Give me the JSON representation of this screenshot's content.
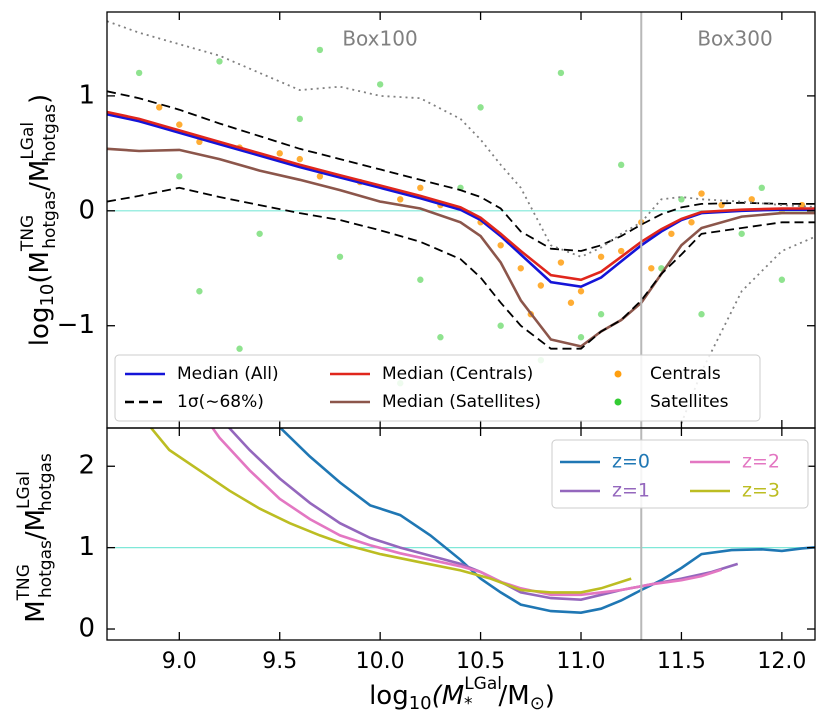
{
  "chart_data": [
    {
      "type": "line",
      "ylabel_parts": [
        "log",
        "10",
        "(M",
        "TNG",
        "hotgas",
        "/M",
        "LGal",
        "hotgas",
        ")"
      ],
      "xlim": [
        8.64,
        12.165
      ],
      "ylim": [
        -1.89,
        1.73
      ],
      "yticks": [
        {
          "value": -1,
          "label": "−1"
        },
        0,
        1
      ],
      "hline": 0,
      "vline": 11.3,
      "annotations": [
        "Box100",
        "Box300"
      ],
      "legend": "lower left",
      "x": [
        8.64,
        8.8,
        9.0,
        9.2,
        9.4,
        9.6,
        9.8,
        10.0,
        10.2,
        10.4,
        10.5,
        10.6,
        10.7,
        10.85,
        11.0,
        11.1,
        11.2,
        11.3,
        11.4,
        11.5,
        11.6,
        11.8,
        12.0,
        12.2
      ],
      "series": [
        {
          "name": "Median (All)",
          "color": "#1414d8",
          "dash": "solid",
          "values": [
            0.84,
            0.78,
            0.68,
            0.58,
            0.48,
            0.38,
            0.29,
            0.2,
            0.11,
            0.01,
            -0.08,
            -0.22,
            -0.38,
            -0.62,
            -0.66,
            -0.58,
            -0.44,
            -0.3,
            -0.18,
            -0.08,
            -0.02,
            0.0,
            0.01,
            0.01
          ]
        },
        {
          "name": "Median (Centrals)",
          "color": "#e0261c",
          "dash": "solid",
          "values": [
            0.86,
            0.8,
            0.7,
            0.6,
            0.5,
            0.4,
            0.31,
            0.22,
            0.13,
            0.03,
            -0.06,
            -0.2,
            -0.35,
            -0.56,
            -0.6,
            -0.53,
            -0.4,
            -0.27,
            -0.16,
            -0.07,
            -0.01,
            0.01,
            0.02,
            0.02
          ]
        },
        {
          "name": "Median (Satellites)",
          "color": "#8c564b",
          "dash": "solid",
          "values": [
            0.54,
            0.52,
            0.53,
            0.45,
            0.35,
            0.27,
            0.18,
            0.08,
            0.02,
            -0.1,
            -0.22,
            -0.45,
            -0.78,
            -1.12,
            -1.18,
            -1.05,
            -0.95,
            -0.8,
            -0.55,
            -0.3,
            -0.15,
            -0.05,
            -0.02,
            -0.02
          ]
        },
        {
          "name": "1σ(∼68%)",
          "color": "#000000",
          "dash": "dashed",
          "values": [
            1.04,
            0.98,
            0.88,
            0.76,
            0.65,
            0.54,
            0.45,
            0.36,
            0.27,
            0.18,
            0.12,
            0.02,
            -0.18,
            -0.33,
            -0.35,
            -0.3,
            -0.22,
            -0.12,
            -0.03,
            0.03,
            0.06,
            0.07,
            0.06,
            0.06
          ]
        },
        {
          "color": "#000000",
          "dash": "dashed",
          "values": [
            0.08,
            0.13,
            0.2,
            0.12,
            0.05,
            -0.02,
            -0.08,
            -0.17,
            -0.27,
            -0.42,
            -0.58,
            -0.8,
            -1.0,
            -1.2,
            -1.2,
            -1.05,
            -0.95,
            -0.78,
            -0.55,
            -0.38,
            -0.2,
            -0.15,
            -0.1,
            -0.1
          ]
        },
        {
          "color": "#808080",
          "dash": "dotted",
          "values": [
            1.65,
            1.55,
            1.45,
            1.35,
            1.2,
            1.05,
            1.08,
            1.0,
            0.98,
            0.8,
            0.62,
            0.4,
            0.2,
            -0.3,
            -0.4,
            -0.32,
            -0.2,
            -0.1,
            0.1,
            0.12,
            0.1,
            0.08,
            0.05,
            0.03
          ]
        },
        {
          "color": "#808080",
          "dash": "dotted",
          "values": [
            null,
            null,
            null,
            null,
            null,
            null,
            null,
            null,
            null,
            null,
            null,
            null,
            null,
            null,
            null,
            null,
            null,
            null,
            null,
            -1.85,
            -1.4,
            -0.7,
            -0.35,
            -0.2
          ]
        }
      ],
      "scatter_series": [
        {
          "name": "Centrals",
          "color": "#ff9f10",
          "x": [
            8.9,
            9.1,
            9.3,
            9.5,
            9.7,
            9.9,
            10.1,
            10.3,
            10.5,
            10.6,
            10.7,
            10.8,
            10.9,
            11.0,
            11.1,
            11.2,
            11.35,
            11.45,
            11.55,
            11.7,
            11.85,
            12.0,
            12.1,
            10.75,
            10.95,
            11.3,
            11.6,
            9.0,
            9.6,
            10.2
          ],
          "y": [
            0.9,
            0.6,
            0.55,
            0.5,
            0.3,
            0.25,
            0.1,
            0.05,
            -0.1,
            -0.3,
            -0.5,
            -0.65,
            -0.45,
            -0.7,
            -0.4,
            -0.35,
            -0.5,
            -0.2,
            -0.1,
            0.05,
            0.1,
            0.0,
            0.05,
            -0.9,
            -0.8,
            -0.1,
            0.15,
            0.75,
            0.45,
            0.2
          ]
        },
        {
          "name": "Satellites",
          "color": "#33cc33",
          "x": [
            8.8,
            9.0,
            9.2,
            9.4,
            9.6,
            9.8,
            10.0,
            10.2,
            10.4,
            10.6,
            10.8,
            10.9,
            11.0,
            11.2,
            11.4,
            11.6,
            11.8,
            12.0,
            9.3,
            9.7,
            10.1,
            10.5,
            10.7,
            11.1,
            11.5,
            9.1,
            10.3,
            11.9
          ],
          "y": [
            1.2,
            0.3,
            1.3,
            -0.2,
            0.8,
            -0.4,
            1.1,
            -0.6,
            0.2,
            -1.0,
            -1.3,
            1.2,
            -1.1,
            0.4,
            -0.5,
            -0.9,
            -0.2,
            -0.6,
            -1.2,
            1.4,
            -1.5,
            0.9,
            -1.7,
            -0.9,
            0.1,
            -0.7,
            -1.1,
            0.2
          ]
        }
      ]
    },
    {
      "type": "line",
      "ylabel_parts": [
        "M",
        "TNG",
        "hotgas",
        "/M",
        "LGal",
        "hotgas"
      ],
      "xlabel_parts": [
        "log",
        "10",
        "(M",
        "LGal",
        "*",
        "/M",
        "⊙",
        ")"
      ],
      "xlim": [
        8.64,
        12.165
      ],
      "xticks": [
        {
          "value": 9,
          "label": "9.0"
        },
        9.5,
        {
          "value": 10,
          "label": "10.0"
        },
        10.5,
        {
          "value": 11,
          "label": "11.0"
        },
        11.5,
        {
          "value": 12,
          "label": "12.0"
        }
      ],
      "ylim": [
        -0.135,
        2.47
      ],
      "yticks": [
        0,
        1,
        2
      ],
      "hline": 1,
      "vline": 11.3,
      "legend": "upper right",
      "series": [
        {
          "name": "z=0",
          "color": "#1f77b4",
          "x": [
            9.4,
            9.5,
            9.65,
            9.8,
            9.95,
            10.1,
            10.25,
            10.4,
            10.5,
            10.6,
            10.7,
            10.85,
            11.0,
            11.1,
            11.2,
            11.3,
            11.4,
            11.5,
            11.6,
            11.75,
            11.9,
            12.0,
            12.1,
            12.2
          ],
          "values": [
            2.9,
            2.48,
            2.12,
            1.8,
            1.52,
            1.4,
            1.15,
            0.85,
            0.62,
            0.45,
            0.3,
            0.22,
            0.2,
            0.25,
            0.35,
            0.48,
            0.6,
            0.75,
            0.92,
            0.97,
            0.98,
            0.96,
            0.99,
            1.01
          ]
        },
        {
          "name": "z=1",
          "color": "#9467bd",
          "x": [
            9.1,
            9.2,
            9.35,
            9.5,
            9.65,
            9.8,
            9.95,
            10.1,
            10.25,
            10.4,
            10.5,
            10.6,
            10.7,
            10.85,
            11.0,
            11.1,
            11.2,
            11.35,
            11.5,
            11.65,
            11.78
          ],
          "values": [
            2.9,
            2.6,
            2.2,
            1.85,
            1.55,
            1.3,
            1.12,
            1.0,
            0.9,
            0.8,
            0.7,
            0.58,
            0.45,
            0.38,
            0.36,
            0.42,
            0.48,
            0.55,
            0.62,
            0.7,
            0.8
          ]
        },
        {
          "name": "z=2",
          "color": "#e377c2",
          "x": [
            9.1,
            9.2,
            9.35,
            9.5,
            9.65,
            9.8,
            9.95,
            10.1,
            10.25,
            10.4,
            10.5,
            10.6,
            10.7,
            10.85,
            11.0,
            11.1,
            11.2,
            11.35,
            11.5,
            11.6,
            11.7
          ],
          "values": [
            2.7,
            2.35,
            1.95,
            1.6,
            1.35,
            1.15,
            1.03,
            0.93,
            0.85,
            0.77,
            0.7,
            0.58,
            0.5,
            0.42,
            0.42,
            0.45,
            0.48,
            0.55,
            0.6,
            0.65,
            0.73
          ]
        },
        {
          "name": "z=3",
          "color": "#bcbd22",
          "x": [
            8.85,
            8.95,
            9.1,
            9.25,
            9.4,
            9.55,
            9.7,
            9.85,
            10.0,
            10.2,
            10.4,
            10.55,
            10.7,
            10.85,
            11.0,
            11.1,
            11.25
          ],
          "values": [
            2.5,
            2.2,
            1.95,
            1.7,
            1.48,
            1.3,
            1.15,
            1.02,
            0.92,
            0.82,
            0.72,
            0.62,
            0.48,
            0.45,
            0.45,
            0.5,
            0.62
          ]
        }
      ]
    }
  ]
}
